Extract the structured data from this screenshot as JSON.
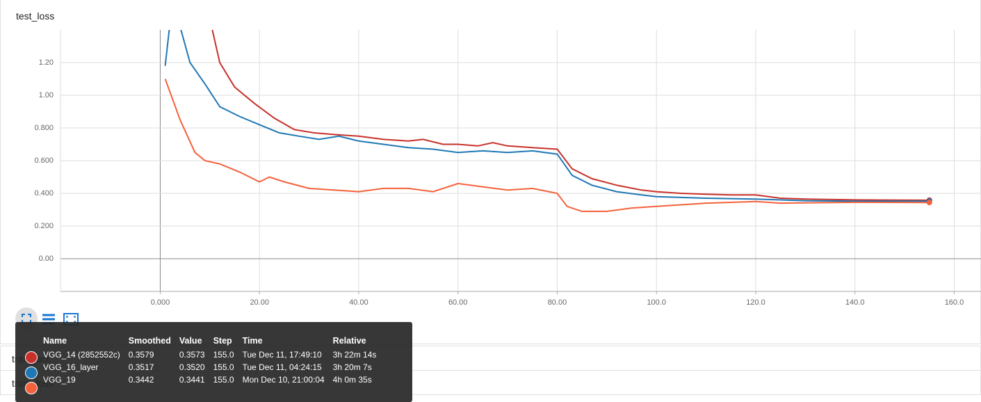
{
  "chart_data": {
    "type": "line",
    "title": "test_loss",
    "xlim": [
      -20.1,
      165.4
    ],
    "ylim": [
      -0.2,
      1.4
    ],
    "xticks": [
      {
        "value": 0,
        "label": "0.000"
      },
      {
        "value": 20,
        "label": "20.00"
      },
      {
        "value": 40,
        "label": "40.00"
      },
      {
        "value": 60,
        "label": "60.00"
      },
      {
        "value": 80,
        "label": "80.00"
      },
      {
        "value": 100,
        "label": "100.0"
      },
      {
        "value": 120,
        "label": "120.0"
      },
      {
        "value": 140,
        "label": "140.0"
      },
      {
        "value": 160,
        "label": "160.0"
      }
    ],
    "yticks": [
      {
        "value": 0,
        "label": "0.00"
      },
      {
        "value": 0.2,
        "label": "0.200"
      },
      {
        "value": 0.4,
        "label": "0.400"
      },
      {
        "value": 0.6,
        "label": "0.600"
      },
      {
        "value": 0.8,
        "label": "0.800"
      },
      {
        "value": 1.0,
        "label": "1.00"
      },
      {
        "value": 1.2,
        "label": "1.20"
      }
    ],
    "grid": true,
    "series": [
      {
        "name": "VGG_14 (2852552c)",
        "color": "#c8312a",
        "x": [
          9,
          12,
          15,
          19,
          23,
          27,
          31,
          35,
          40,
          45,
          50,
          53,
          57,
          60,
          64,
          67,
          70,
          75,
          80,
          83,
          87,
          92,
          97,
          100,
          105,
          110,
          115,
          120,
          125,
          130,
          140,
          155
        ],
        "values": [
          1.6,
          1.2,
          1.05,
          0.95,
          0.86,
          0.79,
          0.77,
          0.76,
          0.75,
          0.73,
          0.72,
          0.73,
          0.7,
          0.7,
          0.69,
          0.71,
          0.69,
          0.68,
          0.67,
          0.55,
          0.49,
          0.45,
          0.42,
          0.41,
          0.4,
          0.395,
          0.39,
          0.39,
          0.37,
          0.365,
          0.36,
          0.358
        ]
      },
      {
        "name": "VGG_16_layer",
        "color": "#1f77b4",
        "x": [
          1,
          2,
          4,
          6,
          9,
          12,
          16,
          20,
          24,
          28,
          32,
          36,
          40,
          45,
          50,
          55,
          60,
          65,
          70,
          75,
          80,
          83,
          87,
          92,
          97,
          100,
          110,
          120,
          130,
          140,
          155
        ],
        "values": [
          1.18,
          1.45,
          1.42,
          1.2,
          1.07,
          0.93,
          0.87,
          0.82,
          0.77,
          0.75,
          0.73,
          0.75,
          0.72,
          0.7,
          0.68,
          0.67,
          0.65,
          0.66,
          0.65,
          0.66,
          0.64,
          0.51,
          0.45,
          0.41,
          0.39,
          0.38,
          0.37,
          0.365,
          0.355,
          0.352,
          0.352
        ]
      },
      {
        "name": "VGG_19",
        "color": "#f4613a",
        "x": [
          1,
          4,
          7,
          9,
          12,
          16,
          20,
          22,
          25,
          30,
          35,
          40,
          45,
          50,
          55,
          60,
          65,
          70,
          75,
          80,
          82,
          85,
          90,
          95,
          100,
          110,
          120,
          125,
          140,
          155
        ],
        "values": [
          1.1,
          0.85,
          0.65,
          0.6,
          0.58,
          0.53,
          0.47,
          0.5,
          0.47,
          0.43,
          0.42,
          0.41,
          0.43,
          0.43,
          0.41,
          0.46,
          0.44,
          0.42,
          0.43,
          0.4,
          0.32,
          0.29,
          0.29,
          0.31,
          0.32,
          0.34,
          0.35,
          0.34,
          0.345,
          0.344
        ]
      }
    ]
  },
  "tooltip": {
    "headers": [
      "Name",
      "Smoothed",
      "Value",
      "Step",
      "Time",
      "Relative"
    ],
    "rows": [
      [
        "VGG_14 (2852552c)",
        "0.3579",
        "0.3573",
        "155.0",
        "Tue Dec 11, 17:49:10",
        "3h 22m 14s"
      ],
      [
        "VGG_16_layer",
        "0.3517",
        "0.3520",
        "155.0",
        "Tue Dec 11, 04:24:15",
        "3h 20m 7s"
      ],
      [
        "VGG_19",
        "0.3442",
        "0.3441",
        "155.0",
        "Mon Dec 10, 21:00:04",
        "4h 0m 35s"
      ]
    ]
  },
  "sections": [
    "train_acc",
    "train_loss"
  ]
}
